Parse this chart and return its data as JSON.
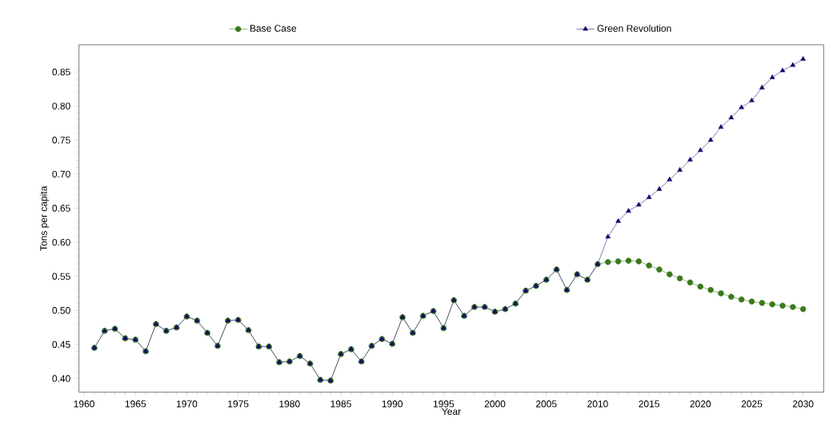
{
  "chart_data": {
    "type": "line",
    "xlabel": "Year",
    "ylabel": "Tons per capita",
    "x": [
      1961,
      1962,
      1963,
      1964,
      1965,
      1966,
      1967,
      1968,
      1969,
      1970,
      1971,
      1972,
      1973,
      1974,
      1975,
      1976,
      1977,
      1978,
      1979,
      1980,
      1981,
      1982,
      1983,
      1984,
      1985,
      1986,
      1987,
      1988,
      1989,
      1990,
      1991,
      1992,
      1993,
      1994,
      1995,
      1996,
      1997,
      1998,
      1999,
      2000,
      2001,
      2002,
      2003,
      2004,
      2005,
      2006,
      2007,
      2008,
      2009,
      2010,
      2011,
      2012,
      2013,
      2014,
      2015,
      2016,
      2017,
      2018,
      2019,
      2020,
      2021,
      2022,
      2023,
      2024,
      2025,
      2026,
      2027,
      2028,
      2029,
      2030
    ],
    "series": [
      {
        "name": "Base Case",
        "color": "#3a7a1a",
        "marker": "circle",
        "values": [
          0.445,
          0.47,
          0.473,
          0.459,
          0.457,
          0.44,
          0.48,
          0.47,
          0.475,
          0.491,
          0.485,
          0.467,
          0.448,
          0.485,
          0.486,
          0.471,
          0.447,
          0.447,
          0.424,
          0.425,
          0.433,
          0.422,
          0.398,
          0.397,
          0.436,
          0.443,
          0.425,
          0.448,
          0.458,
          0.451,
          0.49,
          0.467,
          0.492,
          0.499,
          0.474,
          0.515,
          0.492,
          0.505,
          0.505,
          0.498,
          0.502,
          0.51,
          0.529,
          0.536,
          0.545,
          0.56,
          0.53,
          0.553,
          0.545,
          0.568,
          0.571,
          0.572,
          0.573,
          0.572,
          0.566,
          0.56,
          0.553,
          0.547,
          0.541,
          0.535,
          0.53,
          0.525,
          0.52,
          0.516,
          0.513,
          0.511,
          0.509,
          0.507,
          0.505,
          0.502
        ]
      },
      {
        "name": "Green Revolution",
        "color": "#140a6e",
        "marker": "triangle",
        "values": [
          0.445,
          0.47,
          0.473,
          0.459,
          0.457,
          0.44,
          0.48,
          0.47,
          0.475,
          0.491,
          0.485,
          0.467,
          0.448,
          0.485,
          0.486,
          0.471,
          0.447,
          0.447,
          0.424,
          0.425,
          0.433,
          0.422,
          0.398,
          0.397,
          0.436,
          0.443,
          0.425,
          0.448,
          0.458,
          0.451,
          0.49,
          0.467,
          0.492,
          0.499,
          0.474,
          0.515,
          0.492,
          0.505,
          0.505,
          0.498,
          0.502,
          0.51,
          0.529,
          0.536,
          0.545,
          0.56,
          0.53,
          0.553,
          0.545,
          0.568,
          0.608,
          0.631,
          0.646,
          0.655,
          0.666,
          0.678,
          0.692,
          0.706,
          0.721,
          0.735,
          0.75,
          0.769,
          0.783,
          0.798,
          0.808,
          0.827,
          0.842,
          0.852,
          0.86,
          0.869
        ]
      }
    ],
    "xlim": [
      1959.5,
      2032
    ],
    "ylim": [
      0.38,
      0.89
    ],
    "xticks": [
      1960,
      1965,
      1970,
      1975,
      1980,
      1985,
      1990,
      1995,
      2000,
      2005,
      2010,
      2015,
      2020,
      2025,
      2030
    ],
    "yticks": [
      {
        "value": 0.4,
        "label": "0.40"
      },
      {
        "value": 0.45,
        "label": "0.45"
      },
      {
        "value": 0.5,
        "label": "0.50"
      },
      {
        "value": 0.55,
        "label": "0.55"
      },
      {
        "value": 0.6,
        "label": "0.60"
      },
      {
        "value": 0.65,
        "label": "0.65"
      },
      {
        "value": 0.7,
        "label": "0.70"
      },
      {
        "value": 0.75,
        "label": "0.75"
      },
      {
        "value": 0.8,
        "label": "0.80"
      },
      {
        "value": 0.85,
        "label": "0.85"
      }
    ],
    "legend": "top",
    "line_style": "solid"
  }
}
